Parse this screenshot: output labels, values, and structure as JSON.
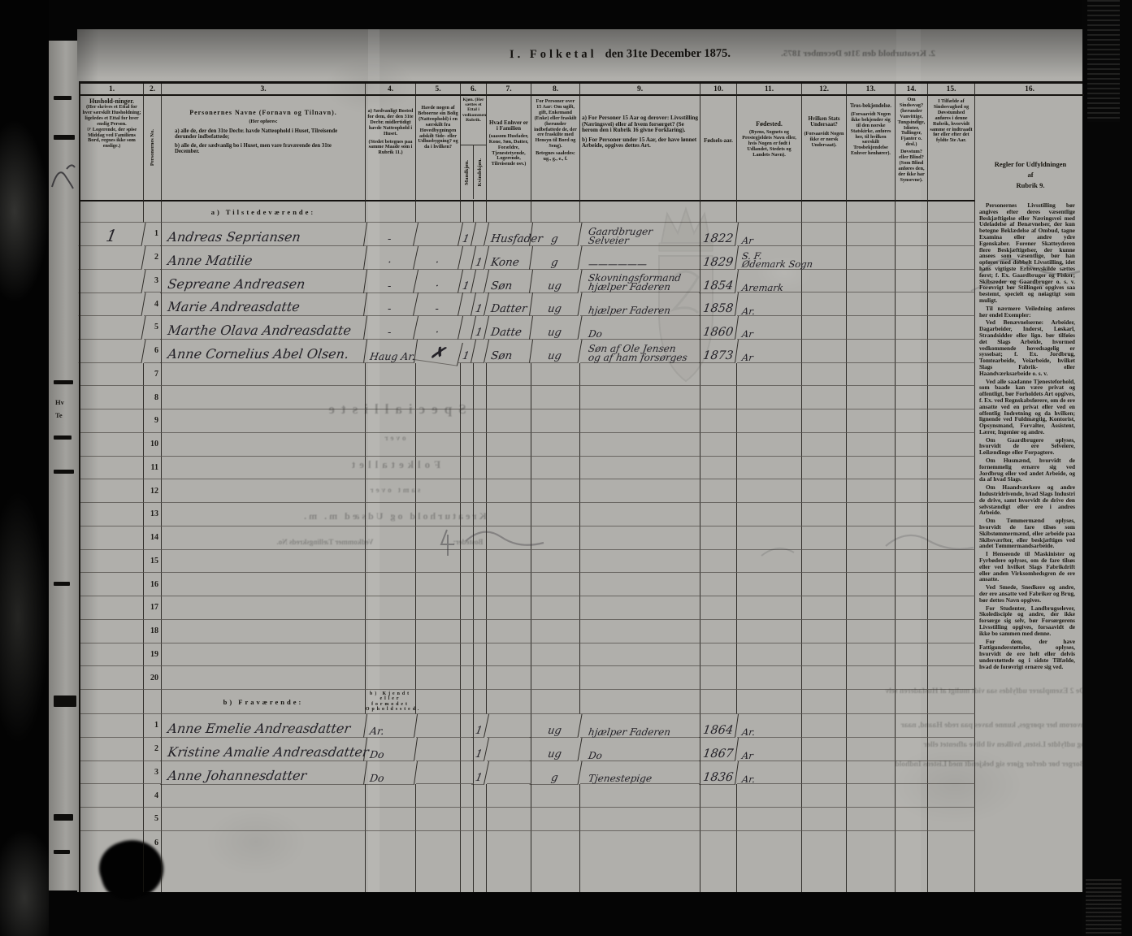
{
  "page": {
    "title1": "I. Folketal",
    "title2": "den 31te December 1875.",
    "mirrored_note": "2. Kreaturhold den 31te December 1875.",
    "left_edge_fragments": {
      "f1": "Hv",
      "f2": "Te"
    }
  },
  "col_headers": {
    "c1": {
      "num": "1.",
      "title": "Hushold-ninger.",
      "body": "(Her skrives et Ettal for hver særskilt Husholdning; ligeledes et Ettal for hver enslig Person.",
      "body2": "☞ Logerende, der spise Middag ved Familiens Bord, regnes ikke som enslige.)"
    },
    "c2": {
      "num": "2.",
      "vertical": "Personernes No."
    },
    "c3": {
      "num": "3.",
      "title": "Personernes Navne (Fornavn og Tilnavn).",
      "sub": "(Her opføres:",
      "a": "a) alle de, der den 31te Decbr. havde Natteophold i Huset, Tilreisende derunder indbefattede;",
      "b": "b) alle de, der sædvanlig bo i Huset, men vare fraværende den 31te December."
    },
    "c4": {
      "num": "4.",
      "body": "a) Sædvanligt Bosted for dem, der den 31te Decbr. midlertidigt havde Natteophold i Huset.",
      "note": "(Stedet betegnes paa samme Maade som i Rubrik 11.)"
    },
    "c5": {
      "num": "5.",
      "body": "Havde nogen af Beboerne sin Bolig (Natteophold) i en særskilt fra Hovedbygningen adskilt Side- eller Udhusbygning? og da i hvilken?"
    },
    "c6": {
      "num": "6.",
      "note": "Kjøn. (Her sættes et Ettal i vedkommende Rubrik.",
      "male": "Mandkjøn.",
      "female": "Kvindekjøn."
    },
    "c7": {
      "num": "7.",
      "body": "Hvad Enhver er i Familien",
      "note": "(saasom Husfader, Kone, Søn, Datter, Forældre, Tjenestetyende, Logerende, Tilreisende osv.)"
    },
    "c8": {
      "num": "8.",
      "body": "For Personer over 15 Aar: Om ugift, gift, Enkemand (Enke) eller fraskilt (herunder indbefattede de, der ere fraskilte med Hensyn til Bord og Seng).",
      "note": "Betegnes saaledes: ug., g., e., f."
    },
    "c9": {
      "num": "9.",
      "a": "a) For Personer 15 Aar og derover: Livsstilling (Næringsvei) eller af hvem forsørget? (Se herom den i Rubrik 16 givne Forklaring).",
      "b": "b) For Personer under 15 Aar, der have lønnet Arbeide, opgives dettes Art."
    },
    "c10": {
      "num": "10.",
      "body": "Fødsels-aar."
    },
    "c11": {
      "num": "11.",
      "title": "Fødested.",
      "note": "(Byens, Sognets og Prestegjeldets Navn eller, hvis Nogen er født i Udlandet, Stedets og Landets Navn)."
    },
    "c12": {
      "num": "12.",
      "title": "Hvilken Stats Undersaat?",
      "note": "(Forsaavidt Nogen ikke er norsk Undersaat)."
    },
    "c13": {
      "num": "13.",
      "title": "Tros-bekjendelse.",
      "note": "(Forsaavidt Nogen ikke bekjender sig til den norske Statskirke, anføres her, til hvilken særskilt Trosbekjendelse Enhver henhører)."
    },
    "c14": {
      "num": "14.",
      "title": "Om Sindssvag?",
      "note": "(herunder Vanvittige, Tungsindige, Idioter, Tullinger, Fjanter o. desl.)",
      "title2": "Døvstum? eller Blind?",
      "note2": "(Som Blind anføres den, der ikke har Synsevne)."
    },
    "c15": {
      "num": "15.",
      "body": "I Tilfælde af Sindssvaghed og Døvstumhed anføres i denne Rubrik, hvorvidt samme er indtraadt før eller efter det fyldte 5te Aar."
    },
    "c16": {
      "num": "16."
    }
  },
  "sections": {
    "a_label": "a) Tilstedeværende:",
    "b_label": "b) Fraværende:",
    "b_col4_note": "b) Kjendt eller formodet Opholdssted."
  },
  "rows_a": [
    {
      "no": "1",
      "household": "1",
      "name": "Andreas Sepriansen",
      "bosted": "‐",
      "udhus": "",
      "m": "1",
      "k": "",
      "familie": "Husfader",
      "status": "g",
      "occ1": "Gaardbruger",
      "occ2": "Selveier",
      "born": "1822",
      "birth1": "Ar"
    },
    {
      "no": "2",
      "household": "",
      "name": "Anne Matilie",
      "bosted": "·",
      "udhus": "·",
      "m": "",
      "k": "1",
      "familie": "Kone",
      "status": "g",
      "occ1": "——————",
      "born": "1829",
      "birth1": "S. F.",
      "birth2": "Ødemark Sogn"
    },
    {
      "no": "3",
      "household": "",
      "name": "Sepreane Andreasen",
      "bosted": "‐",
      "udhus": "·",
      "m": "1",
      "k": "",
      "familie": "Søn",
      "status": "ug",
      "occ1": "Skovningsformand",
      "occ2": "hjælper Faderen",
      "born": "1854",
      "birth1": "Aremark"
    },
    {
      "no": "4",
      "household": "",
      "name": "Marie Andreasdatte",
      "bosted": "‐",
      "udhus": "‐",
      "m": "",
      "k": "1",
      "familie": "Datter",
      "status": "ug",
      "occ1": "hjælper Faderen",
      "born": "1858",
      "birth1": "Ar."
    },
    {
      "no": "5",
      "household": "",
      "name": "Marthe Olava Andreasdatte",
      "bosted": "‐",
      "udhus": "·",
      "m": "",
      "k": "1",
      "familie": "Datte",
      "status": "ug",
      "occ1": "Do",
      "born": "1860",
      "birth1": "Ar"
    },
    {
      "no": "6",
      "household": "",
      "name": "Anne Cornelius Abel Olsen.",
      "bosted": "Haug Ar.",
      "udhus": "✗",
      "m": "1",
      "k": "",
      "familie": "Søn",
      "status": "ug",
      "occ1": "Søn af Ole Jensen",
      "occ2": "og af ham forsørges",
      "born": "1873",
      "birth1": "Ar"
    }
  ],
  "empty_rows_a": [
    "7",
    "8",
    "9",
    "10",
    "11",
    "12",
    "13",
    "14",
    "15",
    "16",
    "17",
    "18",
    "19",
    "20"
  ],
  "rows_b": [
    {
      "no": "1",
      "name": "Anne Emelie Andreasdatter",
      "sted": "Ar.",
      "k": "1",
      "status": "ug",
      "occ1": "hjælper Faderen",
      "born": "1864",
      "birth1": "Ar."
    },
    {
      "no": "2",
      "name": "Kristine Amalie Andreasdatter",
      "sted": "Do",
      "k": "1",
      "status": "ug",
      "occ1": "Do",
      "born": "1867",
      "birth1": "Ar"
    },
    {
      "no": "3",
      "name": "Anne Johannesdatter",
      "sted": "Do",
      "k": "1",
      "status": "g",
      "occ1": "Tjenestepige",
      "born": "1836",
      "birth1": "Ar."
    }
  ],
  "empty_rows_b": [
    "4",
    "5",
    "6"
  ],
  "rules": {
    "title1": "Regler for Udfyldningen",
    "title2": "af",
    "title3": "Rubrik 9.",
    "paragraphs": [
      "Personernes Livsstilling bør angives efter deres væsentlige Beskjæftigelse eller Næringsvei med Udeladelse af Benævnelser, der kun betegne Beklædelse af Ombud, tagne Examina eller andre ydre Egenskaber. Forener Skatteyderen flere Beskjæftigelser, der kunne ansees som væsentlige, bør han opføres med dobbelt Livsstilling, idet hans vigtigste Erhvervskilde sættes først; f. Ex. Gaardbruger og Fisker; Skibsreder og Gaardbruger o. s. v. Forøvrigt bør Stillingen opgives saa bestemt, specielt og nøiagtigt som muligt.",
      "Til nærmere Veiledning anføres her endel Exempler:",
      "Ved Benævnelserne: Arbeider, Dagarbeider, Inderst, Løskarl, Strandsidder eller lign. bør tilføies det Slags Arbeide, hvormed vedkommende hovedsagelig er sysselsat; f. Ex. Jordbrug, Tomtearbeide, Veiarbeide, hvilket Slags Fabrik- eller Haandværksarbeide o. s. v.",
      "Ved alle saadanne Tjenesteforhold, som baade kan være privat og offentligt, bør Forholdets Art opgives, f. Ex. ved Regnskabsførere, om de ere ansatte ved en privat eller ved en offentlig Indretning og da hvilken; lignende ved Fuldmægtig, Kontorist, Opsynsmand, Forvalter, Assistent, Lærer, Ingeniør og andre.",
      "Om Gaardbrugere oplyses, hvorvidt de ere Selveiere, Leilændinge eller Forpagtere.",
      "Om Husmænd, hvorvidt de fornemmelig ernære sig ved Jordbrug eller ved andet Arbeide, og da af hvad Slags.",
      "Om Haandværkere og andre Industridrivende, hvad Slags Industri de drive, samt hvorvidt de drive den selvstændigt eller ere i andres Arbeide.",
      "Om Tømmermænd oplyses, hvorvidt de fare tilsøs som Skibstømmermænd, eller arbeide paa Skibsværfter, eller beskjæftiges ved andet Tømmermandsarbeide.",
      "I Henseende til Maskinister og Fyrbødere oplyses, om de fare tilsøs eller ved hvilket Slags Fabrikdrift eller anden Virksomhedsgren de ere ansatte.",
      "Ved Smede, Snedkere og andre, der ere ansatte ved Fabriker og Brug, bør dettes Navn opgives.",
      "For Studenter, Landbrugselever, Skoledisciple og andre, der ikke forsørge sig selv, bør Forsørgerens Livsstilling opgives, forsaavidt de ikke bo sammen med denne.",
      "For dem, der have Fattigunderstøttelse, oplyses, hvorvidt de ere helt eller delvis understøttede og i sidste Tilfælde, hvad de forøvrigt ernære sig ved."
    ]
  },
  "bleedthrough": {
    "center": [
      "Specialliste",
      "over",
      "Folketallet",
      "samt over",
      "Kreaturhold og Udsæd m. m."
    ],
    "tally_left": "Vedkommer Tællingskreds No.",
    "tally_right": "Bosteder:",
    "paragraph_lines": [
      "De 2 Exemplarer udfyldes saa vidt muligt af Husfaderen selv",
      "hvorom her spørges, kunne haves paa rede Haand, naar",
      "og udfyldte Listen, hvilken vil blive afhentet eller",
      "Borger bør derfor gjøre sig bekjendt med Listens Indhold"
    ]
  },
  "colors": {
    "paper": "#b0afab",
    "ink_printed": "#16140f",
    "ink_hand": "#232127",
    "background": "#050505"
  }
}
